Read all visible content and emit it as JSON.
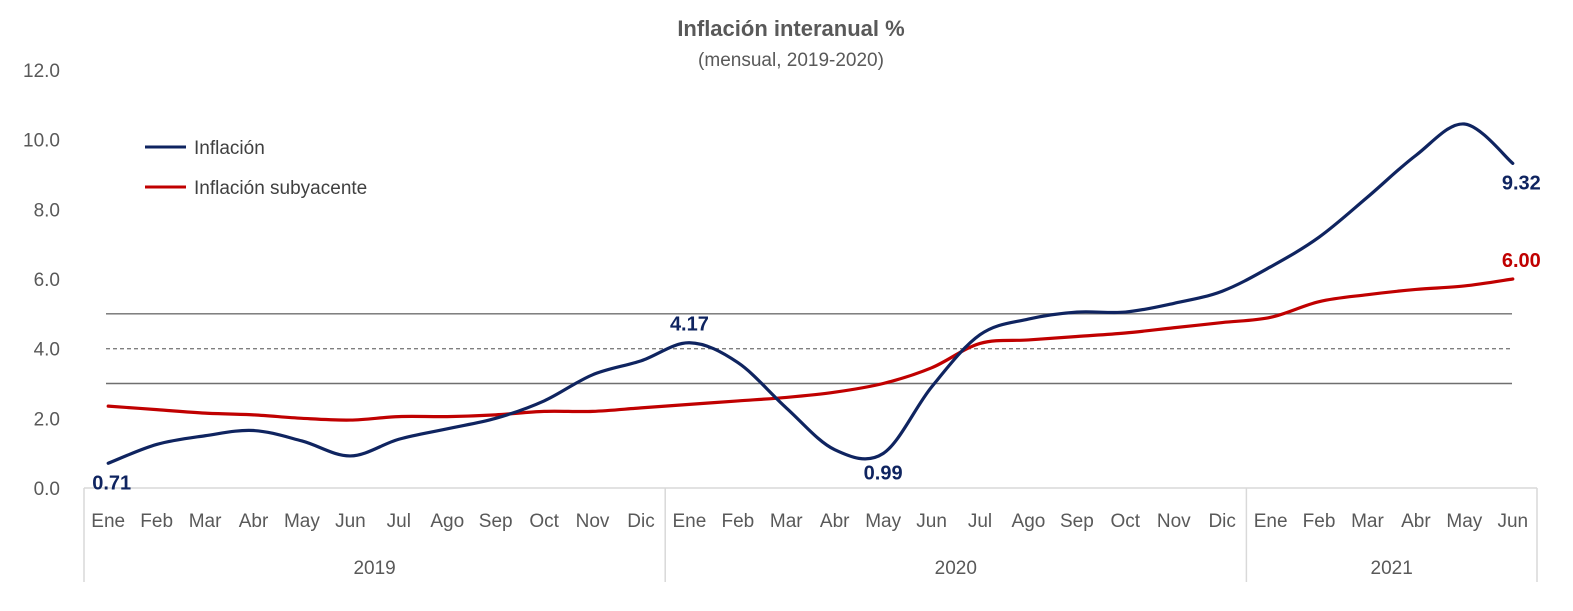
{
  "chart_data": {
    "type": "line",
    "title": "Inflación interanual %",
    "subtitle": "(mensual, 2019-2020)",
    "ylim": [
      0,
      12
    ],
    "yticks": [
      "0.0",
      "2.0",
      "4.0",
      "6.0",
      "8.0",
      "10.0",
      "12.0"
    ],
    "categories": [
      "Ene",
      "Feb",
      "Mar",
      "Abr",
      "May",
      "Jun",
      "Jul",
      "Ago",
      "Sep",
      "Oct",
      "Nov",
      "Dic",
      "Ene",
      "Feb",
      "Mar",
      "Abr",
      "May",
      "Jun",
      "Jul",
      "Ago",
      "Sep",
      "Oct",
      "Nov",
      "Dic",
      "Ene",
      "Feb",
      "Mar",
      "Abr",
      "May",
      "Jun"
    ],
    "years": [
      {
        "label": "2019",
        "start": 0,
        "end": 11
      },
      {
        "label": "2020",
        "start": 12,
        "end": 23
      },
      {
        "label": "2021",
        "start": 24,
        "end": 29
      }
    ],
    "reference_lines": [
      {
        "value": 5.0,
        "style": "solid"
      },
      {
        "value": 4.0,
        "style": "dashed"
      },
      {
        "value": 3.0,
        "style": "solid"
      }
    ],
    "series": [
      {
        "name": "Inflación",
        "color": "#0f2460",
        "values": [
          0.71,
          1.25,
          1.5,
          1.65,
          1.35,
          0.92,
          1.4,
          1.7,
          2.0,
          2.5,
          3.25,
          3.65,
          4.17,
          3.6,
          2.3,
          1.1,
          0.99,
          2.9,
          4.4,
          4.85,
          5.05,
          5.05,
          5.3,
          5.65,
          6.35,
          7.2,
          8.35,
          9.55,
          10.45,
          9.32
        ]
      },
      {
        "name": "Inflación subyacente",
        "color": "#c00000",
        "values": [
          2.35,
          2.25,
          2.15,
          2.1,
          2.0,
          1.95,
          2.05,
          2.05,
          2.1,
          2.2,
          2.2,
          2.3,
          2.4,
          2.5,
          2.6,
          2.75,
          3.0,
          3.45,
          4.15,
          4.25,
          4.35,
          4.45,
          4.6,
          4.75,
          4.9,
          5.35,
          5.55,
          5.7,
          5.8,
          6.0
        ]
      }
    ],
    "data_labels": [
      {
        "series": 0,
        "index": 0,
        "text": "0.71",
        "position": "below"
      },
      {
        "series": 0,
        "index": 12,
        "text": "4.17",
        "position": "above"
      },
      {
        "series": 0,
        "index": 16,
        "text": "0.99",
        "position": "below"
      },
      {
        "series": 0,
        "index": 29,
        "text": "9.32",
        "position": "below"
      },
      {
        "series": 1,
        "index": 29,
        "text": "6.00",
        "position": "above"
      }
    ],
    "legend": {
      "position": "top-left"
    }
  }
}
